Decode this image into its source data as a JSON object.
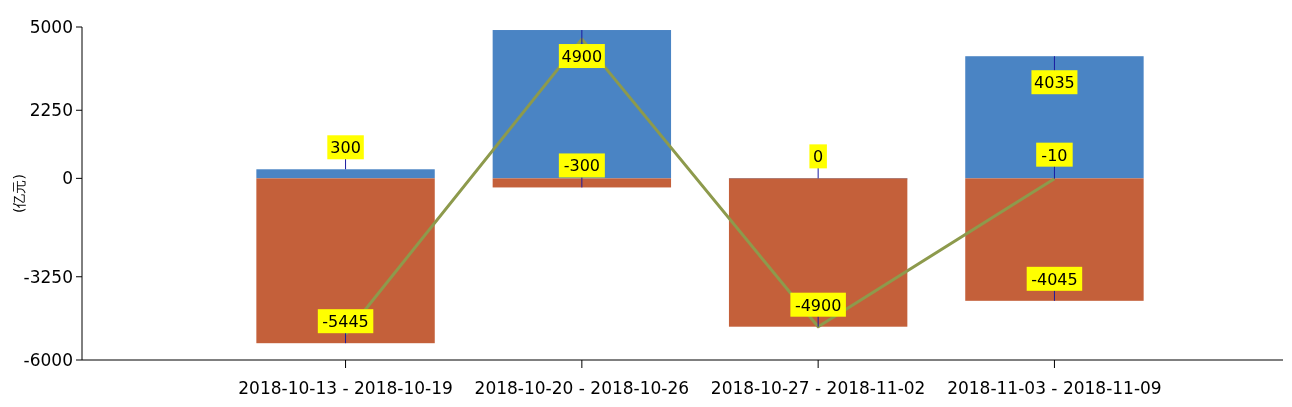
{
  "chart_data": {
    "type": "bar",
    "ylabel": "(亿元)",
    "categories": [
      "2018-10-13 - 2018-10-19",
      "2018-10-20 - 2018-10-26",
      "2018-10-27 - 2018-11-02",
      "2018-11-03 - 2018-11-09"
    ],
    "series": [
      {
        "color": "#4a84c4",
        "values": [
          300,
          4900,
          0,
          4035
        ],
        "value_labels": [
          "300",
          "4900",
          "0",
          "4035"
        ]
      },
      {
        "color": "#c4603a",
        "values": [
          -5445,
          -300,
          -4900,
          -4045
        ],
        "value_labels": [
          "-5445",
          "-300",
          "-4900",
          "-4045"
        ]
      },
      {
        "type": "line",
        "color": "#8d9a4c",
        "values": [
          -5150,
          4600,
          -4900,
          -10
        ],
        "value_labels": [
          null,
          null,
          null,
          "-10"
        ]
      }
    ],
    "stacked": true,
    "ylim": [
      -6000,
      5000
    ],
    "yticks": [
      -6000,
      -3250,
      0,
      2250,
      5000
    ]
  }
}
